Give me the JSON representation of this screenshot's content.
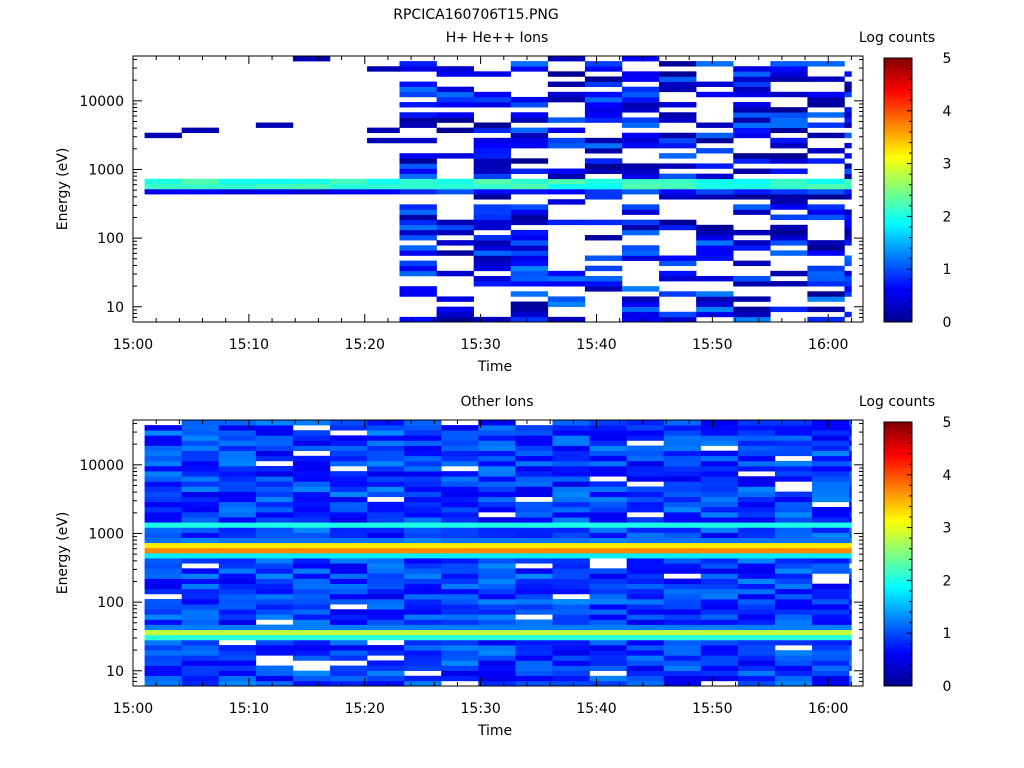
{
  "figure_title": "RPCICA160706T15.PNG",
  "colorbar": {
    "label": "Log counts",
    "range": [
      0,
      5
    ],
    "ticks": [
      "0",
      "1",
      "2",
      "3",
      "4",
      "5"
    ]
  },
  "chart_data": [
    {
      "type": "heatmap",
      "title": "H+ He++ Ions",
      "xlabel": "Time",
      "ylabel": "Energy (eV)",
      "x_ticks": [
        "15:00",
        "15:10",
        "15:20",
        "15:30",
        "15:40",
        "15:50",
        "16:00"
      ],
      "y_ticks": [
        "10",
        "100",
        "1000",
        "10000"
      ],
      "y_scale": "log",
      "y_range_eV": [
        6,
        45000
      ],
      "x_range": [
        "15:00",
        "16:03"
      ],
      "data_start": "15:01",
      "dense_data_start": "15:23",
      "data_end": "16:02",
      "band_peak_energy_eV": 600,
      "band_peak_log_counts": 2.3
    },
    {
      "type": "heatmap",
      "title": "Other Ions",
      "xlabel": "Time",
      "ylabel": "Energy (eV)",
      "x_ticks": [
        "15:00",
        "15:10",
        "15:20",
        "15:30",
        "15:40",
        "15:50",
        "16:00"
      ],
      "y_ticks": [
        "10",
        "100",
        "1000",
        "10000"
      ],
      "y_scale": "log",
      "y_range_eV": [
        6,
        45000
      ],
      "x_range": [
        "15:00",
        "16:03"
      ],
      "data_start": "15:01",
      "data_end": "16:02",
      "band_peak_energy_eV": 600,
      "band_peak_log_counts": 3.9,
      "secondary_band_energy_eV": 35,
      "secondary_band_log_counts": 2.9
    }
  ]
}
